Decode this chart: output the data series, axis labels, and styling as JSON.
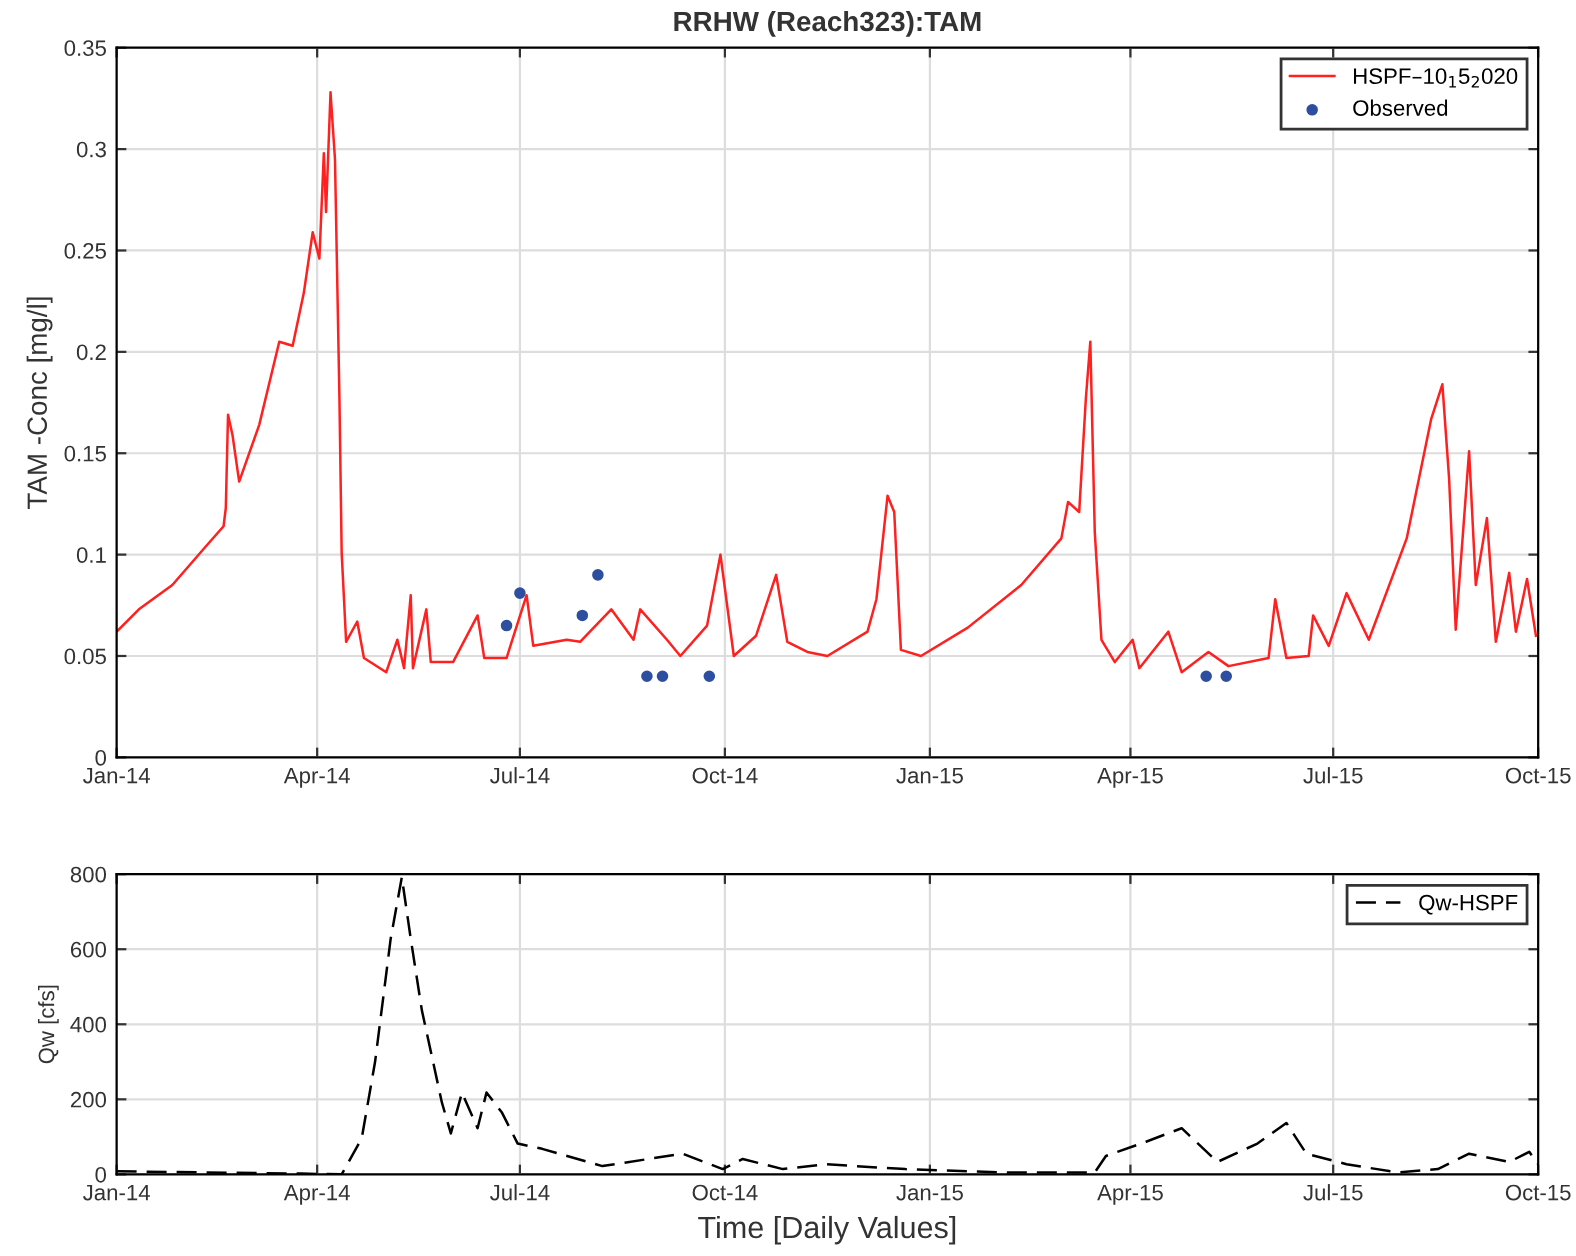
{
  "chart_data": [
    {
      "type": "line",
      "title": "RRHW (Reach323):TAM",
      "ylabel": "TAM -Conc [mg/l]",
      "grid": true,
      "legend": "top right",
      "xlim": [
        "2014-01-01",
        "2015-10-01"
      ],
      "xticks": [
        {
          "value": "2014-01-01",
          "label": "Jan-14"
        },
        {
          "value": "2014-04-01",
          "label": "Apr-14"
        },
        {
          "value": "2014-07-01",
          "label": "Jul-14"
        },
        {
          "value": "2014-10-01",
          "label": "Oct-14"
        },
        {
          "value": "2015-01-01",
          "label": "Jan-15"
        },
        {
          "value": "2015-04-01",
          "label": "Apr-15"
        },
        {
          "value": "2015-07-01",
          "label": "Jul-15"
        },
        {
          "value": "2015-10-01",
          "label": "Oct-15"
        }
      ],
      "ylim": [
        0,
        0.35
      ],
      "yticks": [
        0,
        0.05,
        0.1,
        0.15,
        0.2,
        0.25,
        0.3,
        0.35
      ],
      "series": [
        {
          "name": "HSPF–10$_{1}$5$_{2}$020",
          "color": "#ff2020",
          "line_style": "solid",
          "marker": "none",
          "x": [
            "2014-01-01",
            "2014-01-11",
            "2014-01-26",
            "2014-02-10",
            "2014-02-18",
            "2014-02-19",
            "2014-02-20",
            "2014-02-22",
            "2014-02-25",
            "2014-03-06",
            "2014-03-15",
            "2014-03-21",
            "2014-03-26",
            "2014-03-30",
            "2014-04-02",
            "2014-04-04",
            "2014-04-05",
            "2014-04-07",
            "2014-04-09",
            "2014-04-11",
            "2014-04-12",
            "2014-04-14",
            "2014-04-19",
            "2014-04-22",
            "2014-05-02",
            "2014-05-07",
            "2014-05-10",
            "2014-05-13",
            "2014-05-14",
            "2014-05-20",
            "2014-05-22",
            "2014-06-01",
            "2014-06-12",
            "2014-06-15",
            "2014-06-25",
            "2014-07-04",
            "2014-07-07",
            "2014-07-22",
            "2014-07-28",
            "2014-08-11",
            "2014-08-21",
            "2014-08-24",
            "2014-09-05",
            "2014-09-11",
            "2014-09-23",
            "2014-09-29",
            "2014-10-05",
            "2014-10-15",
            "2014-10-24",
            "2014-10-29",
            "2014-11-07",
            "2014-11-16",
            "2014-12-04",
            "2014-12-08",
            "2014-12-13",
            "2014-12-16",
            "2014-12-19",
            "2014-12-28",
            "2015-01-18",
            "2015-02-11",
            "2015-03-01",
            "2015-03-04",
            "2015-03-09",
            "2015-03-12",
            "2015-03-14",
            "2015-03-16",
            "2015-03-19",
            "2015-03-25",
            "2015-04-02",
            "2015-04-05",
            "2015-04-18",
            "2015-04-24",
            "2015-05-06",
            "2015-05-15",
            "2015-06-02",
            "2015-06-05",
            "2015-06-10",
            "2015-06-20",
            "2015-06-22",
            "2015-06-29",
            "2015-07-07",
            "2015-07-17",
            "2015-08-03",
            "2015-08-14",
            "2015-08-19",
            "2015-08-22",
            "2015-08-25",
            "2015-08-31",
            "2015-09-03",
            "2015-09-08",
            "2015-09-12",
            "2015-09-18",
            "2015-09-21",
            "2015-09-26",
            "2015-09-30"
          ],
          "values": [
            0.062,
            0.073,
            0.085,
            0.104,
            0.114,
            0.123,
            0.169,
            0.159,
            0.136,
            0.164,
            0.205,
            0.203,
            0.229,
            0.259,
            0.246,
            0.298,
            0.269,
            0.328,
            0.295,
            0.177,
            0.101,
            0.057,
            0.067,
            0.049,
            0.042,
            0.058,
            0.044,
            0.08,
            0.044,
            0.073,
            0.047,
            0.047,
            0.07,
            0.049,
            0.049,
            0.08,
            0.055,
            0.058,
            0.057,
            0.073,
            0.058,
            0.073,
            0.058,
            0.05,
            0.065,
            0.1,
            0.05,
            0.06,
            0.09,
            0.057,
            0.052,
            0.05,
            0.062,
            0.078,
            0.129,
            0.121,
            0.053,
            0.05,
            0.064,
            0.085,
            0.108,
            0.126,
            0.121,
            0.177,
            0.205,
            0.111,
            0.058,
            0.047,
            0.058,
            0.044,
            0.062,
            0.042,
            0.052,
            0.045,
            0.049,
            0.078,
            0.049,
            0.05,
            0.07,
            0.055,
            0.081,
            0.058,
            0.108,
            0.167,
            0.184,
            0.138,
            0.063,
            0.151,
            0.085,
            0.118,
            0.057,
            0.091,
            0.062,
            0.088,
            0.06
          ]
        },
        {
          "name": "Observed",
          "type": "scatter",
          "color": "#2e4fa0",
          "marker": "circle",
          "x": [
            "2014-06-25",
            "2014-07-01",
            "2014-07-29",
            "2014-08-05",
            "2014-08-27",
            "2014-09-03",
            "2014-09-24",
            "2015-05-05",
            "2015-05-14"
          ],
          "values": [
            0.065,
            0.081,
            0.07,
            0.09,
            0.04,
            0.04,
            0.04,
            0.04,
            0.04
          ]
        }
      ]
    },
    {
      "type": "line",
      "xlabel": "Time [Daily Values]",
      "ylabel": "Qw [cfs]",
      "grid": true,
      "legend": "top right",
      "xlim": [
        "2014-01-01",
        "2015-10-01"
      ],
      "xticks": [
        {
          "value": "2014-01-01",
          "label": "Jan-14"
        },
        {
          "value": "2014-04-01",
          "label": "Apr-14"
        },
        {
          "value": "2014-07-01",
          "label": "Jul-14"
        },
        {
          "value": "2014-10-01",
          "label": "Oct-14"
        },
        {
          "value": "2015-01-01",
          "label": "Jan-15"
        },
        {
          "value": "2015-04-01",
          "label": "Apr-15"
        },
        {
          "value": "2015-07-01",
          "label": "Jul-15"
        },
        {
          "value": "2015-10-01",
          "label": "Oct-15"
        }
      ],
      "ylim": [
        0,
        800
      ],
      "yticks": [
        0,
        200,
        400,
        600,
        800
      ],
      "series": [
        {
          "name": "Qw-HSPF",
          "color": "#000000",
          "line_style": "dashed",
          "marker": "none",
          "x": [
            "2014-01-01",
            "2014-03-25",
            "2014-04-12",
            "2014-04-21",
            "2014-04-27",
            "2014-05-04",
            "2014-05-09",
            "2014-05-13",
            "2014-05-18",
            "2014-05-27",
            "2014-05-31",
            "2014-06-05",
            "2014-06-12",
            "2014-06-16",
            "2014-06-23",
            "2014-06-30",
            "2014-07-11",
            "2014-08-07",
            "2014-09-12",
            "2014-09-30",
            "2014-10-09",
            "2014-10-27",
            "2014-11-15",
            "2014-12-21",
            "2015-02-04",
            "2015-03-16",
            "2015-03-21",
            "2015-04-08",
            "2015-04-24",
            "2015-05-10",
            "2015-05-28",
            "2015-06-10",
            "2015-06-19",
            "2015-07-07",
            "2015-07-30",
            "2015-08-17",
            "2015-08-31",
            "2015-09-18",
            "2015-09-27",
            "2015-10-01"
          ],
          "values": [
            8,
            2,
            0,
            96,
            300,
            628,
            792,
            628,
            437,
            191,
            109,
            218,
            123,
            218,
            164,
            82,
            68,
            22,
            55,
            14,
            41,
            14,
            27,
            14,
            5,
            5,
            49,
            87,
            123,
            33,
            82,
            137,
            55,
            27,
            5,
            14,
            55,
            33,
            60,
            27
          ]
        }
      ]
    }
  ]
}
